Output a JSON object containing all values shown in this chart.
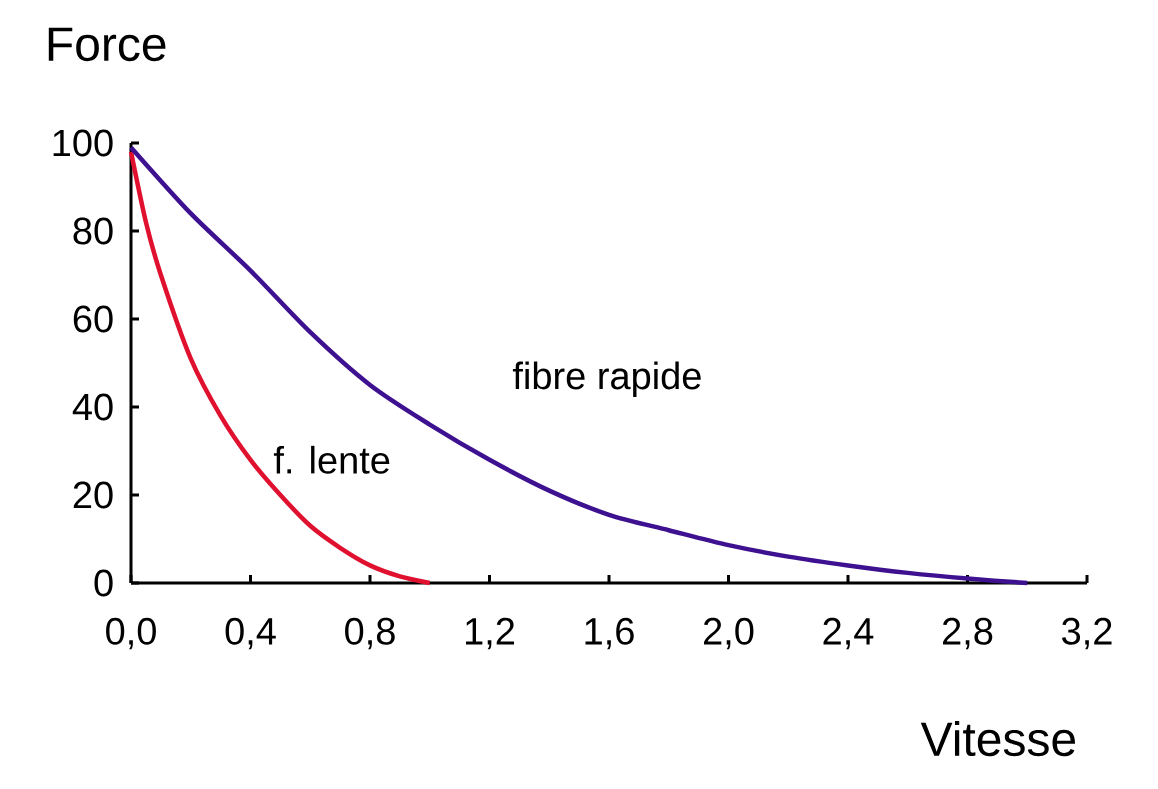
{
  "chart_data": {
    "type": "line",
    "xlabel": "Vitesse",
    "ylabel": "Force",
    "xlim": [
      0,
      3.2
    ],
    "ylim": [
      0,
      100
    ],
    "xticks": [
      {
        "value": 0,
        "label": "0,0"
      },
      {
        "value": 0.4,
        "label": "0,4"
      },
      {
        "value": 0.8,
        "label": "0,8"
      },
      {
        "value": 1.2,
        "label": "1,2"
      },
      {
        "value": 1.6,
        "label": "1,6"
      },
      {
        "value": 2.0,
        "label": "2,0"
      },
      {
        "value": 2.4,
        "label": "2,4"
      },
      {
        "value": 2.8,
        "label": "2,8"
      },
      {
        "value": 3.2,
        "label": "3,2"
      }
    ],
    "yticks": [
      0,
      20,
      40,
      60,
      80,
      100
    ],
    "grid": false,
    "legend": false,
    "marker": "none",
    "line_style": "solid",
    "series": [
      {
        "name": "f. lente",
        "color": "#e0102f",
        "x": [
          0,
          0.05,
          0.1,
          0.2,
          0.3,
          0.4,
          0.5,
          0.6,
          0.7,
          0.8,
          0.9,
          1.0
        ],
        "values": [
          98,
          82,
          70,
          51,
          38,
          28,
          20,
          13,
          8,
          4,
          1.5,
          0
        ]
      },
      {
        "name": "fibre rapide",
        "color": "#3d1190",
        "x": [
          0,
          0.2,
          0.4,
          0.6,
          0.8,
          1.0,
          1.2,
          1.4,
          1.6,
          1.8,
          2.0,
          2.2,
          2.4,
          2.6,
          2.8,
          3.0
        ],
        "values": [
          99,
          84,
          71,
          57,
          45,
          36,
          28,
          21,
          15.5,
          12,
          8.6,
          6,
          4,
          2.3,
          1,
          0
        ]
      }
    ]
  }
}
